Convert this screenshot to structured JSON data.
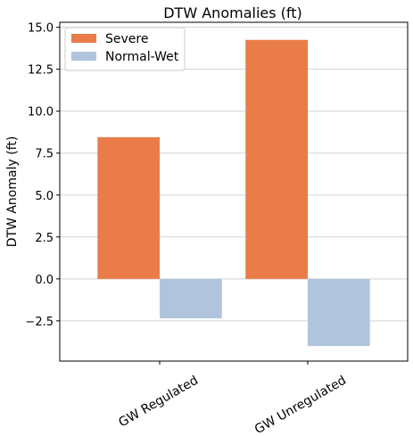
{
  "chart_data": {
    "type": "bar",
    "title": "DTW Anomalies (ft)",
    "xlabel": "",
    "ylabel": "DTW Anomaly (ft)",
    "categories": [
      "GW Regulated",
      "GW Unregulated"
    ],
    "series": [
      {
        "name": "Severe",
        "values": [
          8.45,
          14.25
        ],
        "color": "#e97c48"
      },
      {
        "name": "Normal-Wet",
        "values": [
          -2.35,
          -4.0
        ],
        "color": "#b0c4de"
      }
    ],
    "ylim": [
      -4.9,
      15.3
    ],
    "yticks": [
      -2.5,
      0.0,
      2.5,
      5.0,
      7.5,
      10.0,
      12.5,
      15.0
    ],
    "ytick_labels": [
      "−2.5",
      "0.0",
      "2.5",
      "5.0",
      "7.5",
      "10.0",
      "12.5",
      "15.0"
    ],
    "grid": true,
    "legend_position": "top-left"
  }
}
